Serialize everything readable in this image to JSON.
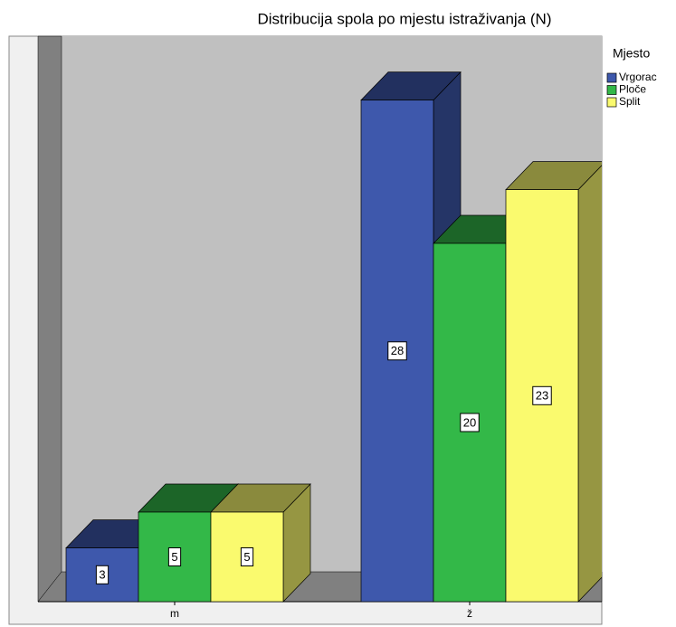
{
  "chart_data": {
    "type": "bar",
    "title": "Distribucija spola po mjestu istraživanja (N)",
    "legend_title": "Mjesto",
    "legend": "right",
    "categories": [
      "m",
      "ž"
    ],
    "series": [
      {
        "name": "Vrgorac",
        "color": "#3e58ac",
        "values": [
          3,
          28
        ]
      },
      {
        "name": "Ploče",
        "color": "#33b848",
        "values": [
          5,
          20
        ]
      },
      {
        "name": "Split",
        "color": "#fafa6e",
        "values": [
          5,
          23
        ]
      }
    ]
  }
}
